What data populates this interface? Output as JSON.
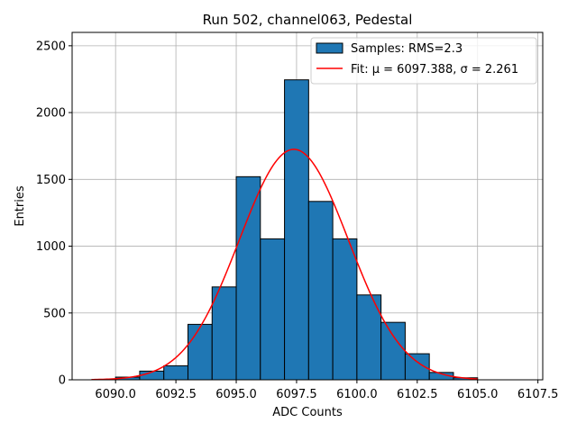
{
  "chart_data": {
    "type": "bar",
    "title": "Run 502, channel063, Pedestal",
    "xlabel": "ADC Counts",
    "ylabel": "Entries",
    "xlim": [
      6088.2,
      6107.7
    ],
    "ylim": [
      0,
      2600
    ],
    "x_ticks": [
      6090.0,
      6092.5,
      6095.0,
      6097.5,
      6100.0,
      6102.5,
      6105.0,
      6107.5
    ],
    "x_tick_labels": [
      "6090.0",
      "6092.5",
      "6095.0",
      "6097.5",
      "6100.0",
      "6102.5",
      "6105.0",
      "6107.5"
    ],
    "y_ticks": [
      0,
      500,
      1000,
      1500,
      2000,
      2500
    ],
    "y_tick_labels": [
      "0",
      "500",
      "1000",
      "1500",
      "2000",
      "2500"
    ],
    "grid": true,
    "legend_position": "top-right",
    "series": [
      {
        "name": "Samples: RMS=2.3",
        "kind": "histogram",
        "color": "#1f77b4",
        "edge_color": "#000000",
        "bin_edges": [
          6090,
          6091,
          6092,
          6093,
          6094,
          6095,
          6096,
          6097,
          6098,
          6099,
          6100,
          6101,
          6102,
          6103,
          6104,
          6105
        ],
        "values": [
          20,
          65,
          105,
          415,
          695,
          1520,
          1055,
          2245,
          1335,
          1055,
          635,
          430,
          195,
          55,
          15
        ]
      },
      {
        "name": "Fit: μ = 6097.388, σ = 2.261",
        "kind": "gaussian",
        "color": "#ff0000",
        "mu": 6097.388,
        "sigma": 2.261,
        "amplitude": 1725,
        "x_range": [
          6089.0,
          6105.0
        ]
      }
    ]
  }
}
